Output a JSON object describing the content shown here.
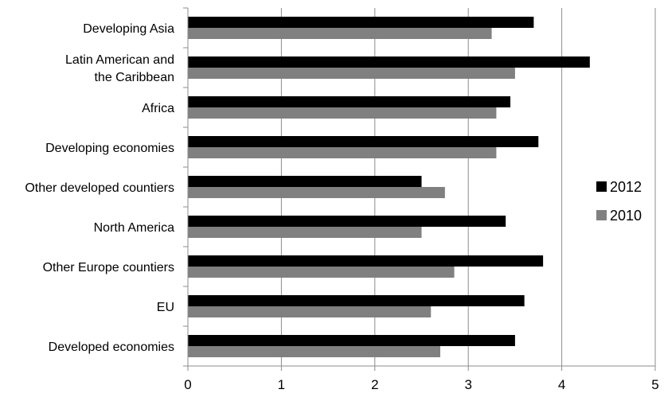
{
  "chart_data": {
    "type": "bar",
    "orientation": "horizontal",
    "title": "",
    "xlabel": "",
    "ylabel": "",
    "xlim": [
      0,
      5
    ],
    "xticks": [
      "0",
      "1",
      "2",
      "3",
      "4",
      "5"
    ],
    "grid": "vertical",
    "legend": "right",
    "categories": [
      [
        "Developing Asia"
      ],
      [
        "Latin American and",
        "the Caribbean"
      ],
      [
        "Africa"
      ],
      [
        "Developing economies"
      ],
      [
        "Other developed countiers"
      ],
      [
        "North America"
      ],
      [
        "Other Europe countiers"
      ],
      [
        "EU"
      ],
      [
        "Developed economies"
      ]
    ],
    "series": [
      {
        "name": "2012",
        "color": "#000000",
        "values": [
          3.7,
          4.3,
          3.45,
          3.75,
          2.5,
          3.4,
          3.8,
          3.6,
          3.5
        ]
      },
      {
        "name": "2010",
        "color": "#808080",
        "values": [
          3.25,
          3.5,
          3.3,
          3.3,
          2.75,
          2.5,
          2.85,
          2.6,
          2.7
        ]
      }
    ]
  }
}
